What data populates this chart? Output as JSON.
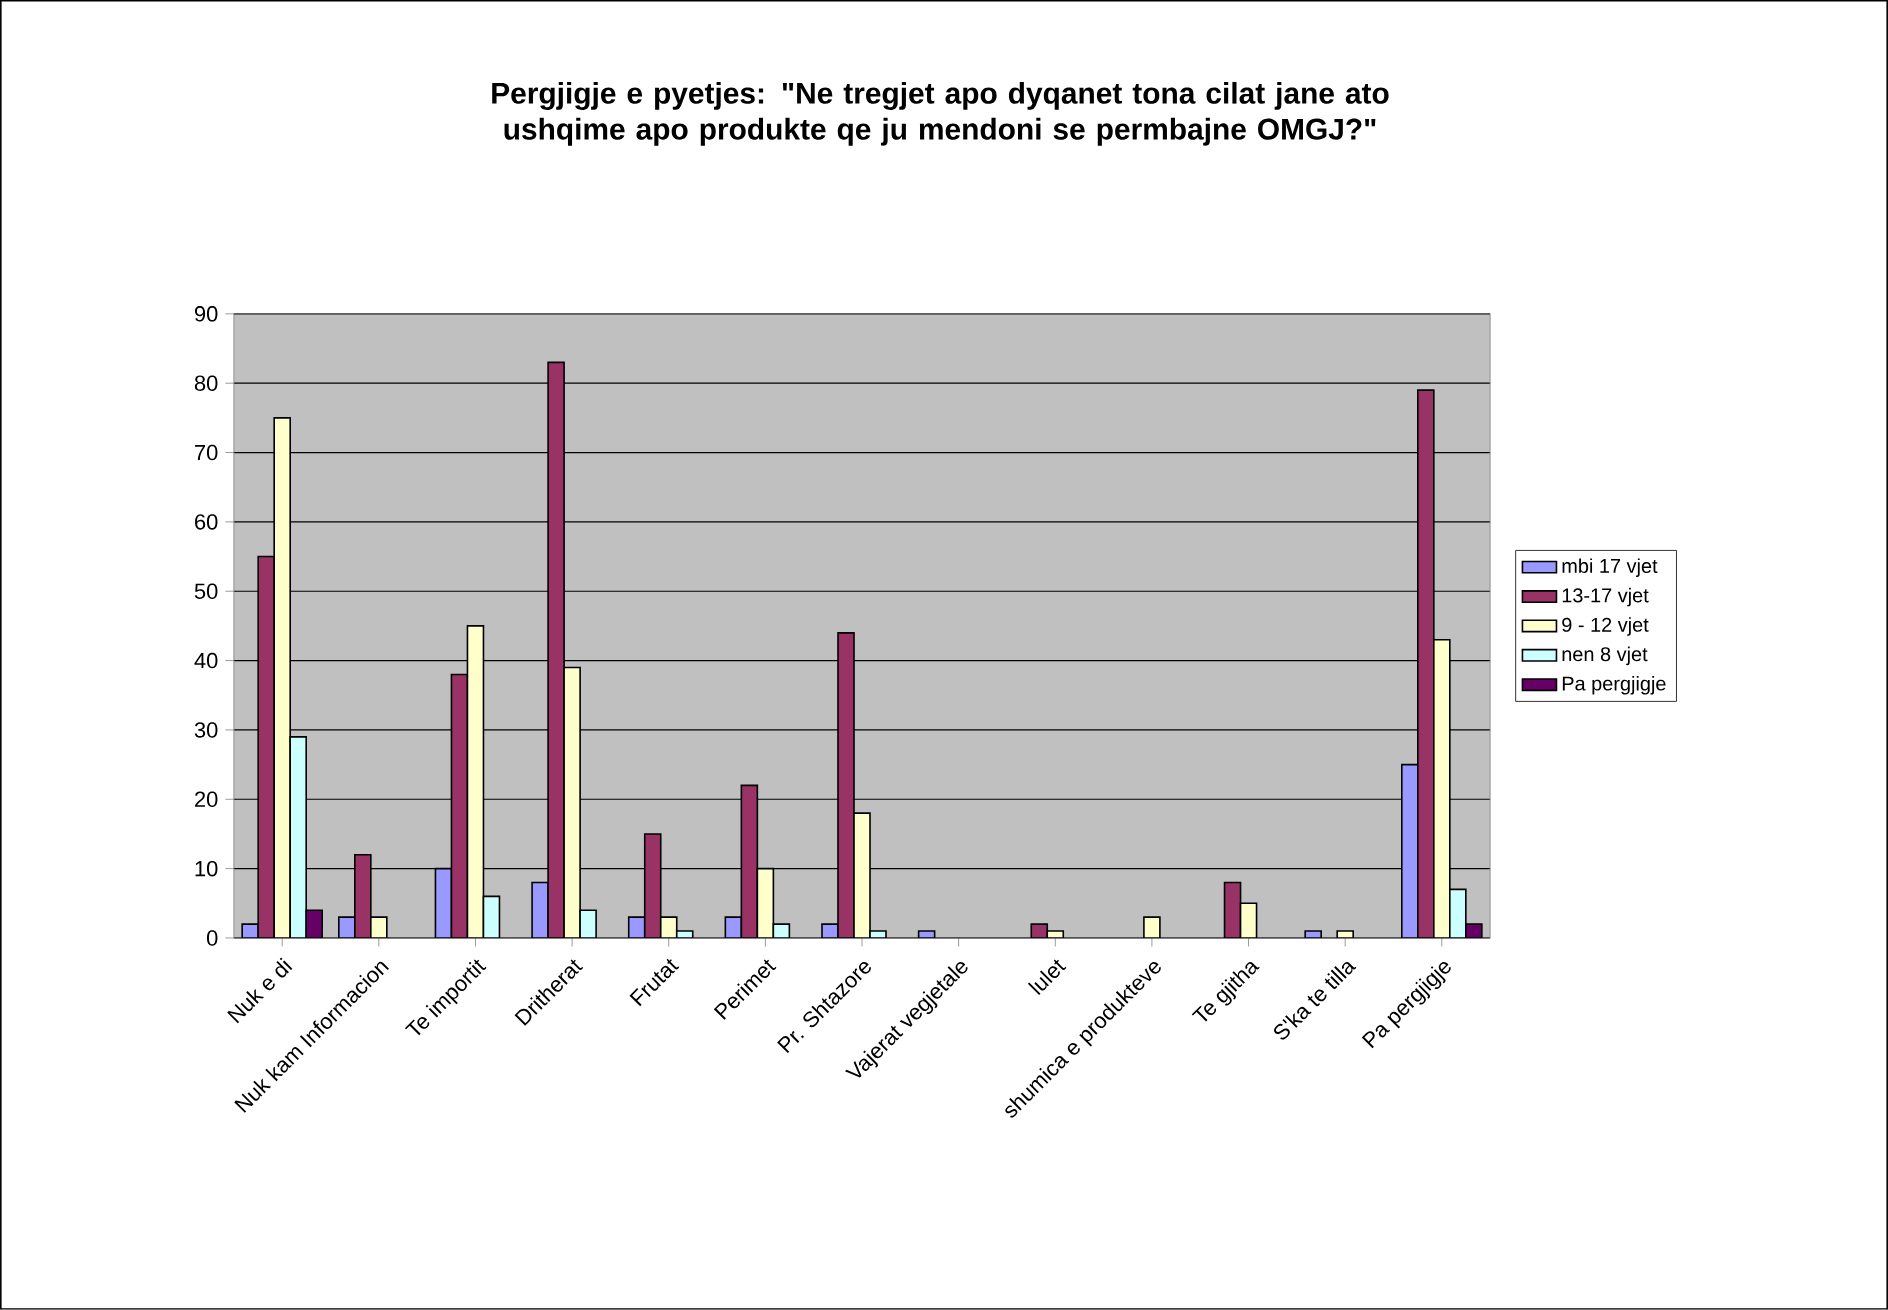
{
  "chart_data": {
    "type": "bar",
    "title": "Pergjigje e pyetjes: \"Ne tregjet apo dyqanet tona cilat jane ato ushqime apo produkte qe ju mendoni se permbajne OMGJ?\"",
    "categories": [
      "Nuk e di",
      "Nuk kam Informacion",
      "Te importit",
      "Dritherat",
      "Frutat",
      "Perimet",
      "Pr. Shtazore",
      "Vajerat vegjetale",
      "lulet",
      "shumica e produkteve",
      "Te gjitha",
      "S'ka te tilla",
      "Pa pergjigje"
    ],
    "series": [
      {
        "name": "mbi 17 vjet",
        "color": "#9999ff",
        "values": [
          2,
          3,
          10,
          8,
          3,
          3,
          2,
          1,
          null,
          null,
          null,
          1,
          25
        ]
      },
      {
        "name": "13-17 vjet",
        "color": "#993366",
        "values": [
          55,
          12,
          38,
          83,
          15,
          22,
          44,
          null,
          2,
          null,
          8,
          null,
          79
        ]
      },
      {
        "name": "9 - 12 vjet",
        "color": "#ffffcc",
        "values": [
          75,
          3,
          45,
          39,
          3,
          10,
          18,
          null,
          1,
          3,
          5,
          1,
          43
        ]
      },
      {
        "name": "nen 8 vjet",
        "color": "#ccffff",
        "values": [
          29,
          null,
          6,
          4,
          1,
          2,
          1,
          null,
          null,
          null,
          null,
          null,
          7
        ]
      },
      {
        "name": "Pa pergjigje",
        "color": "#660066",
        "values": [
          4,
          null,
          null,
          null,
          null,
          null,
          null,
          null,
          null,
          null,
          null,
          null,
          2
        ]
      }
    ],
    "ylim": [
      0,
      90
    ],
    "yticks": [
      0,
      10,
      20,
      30,
      40,
      50,
      60,
      70,
      80,
      90
    ],
    "grid": "y",
    "legend": "right"
  }
}
